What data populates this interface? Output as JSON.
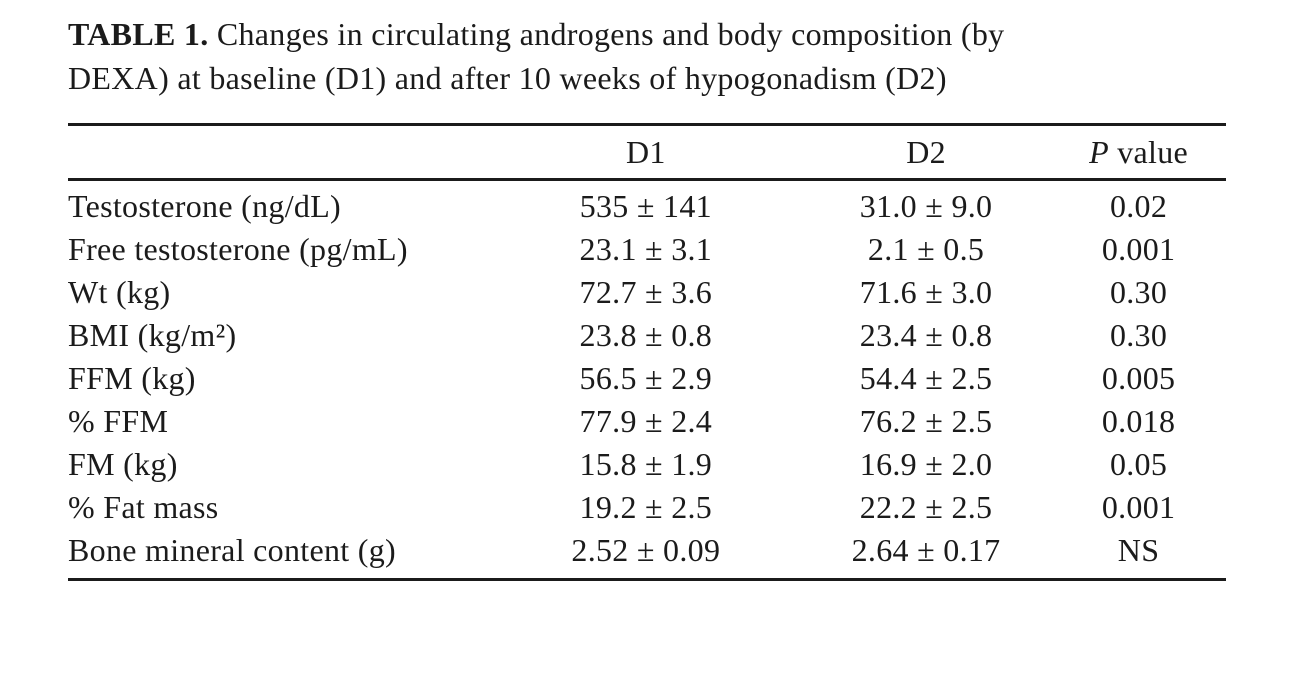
{
  "title": {
    "label": "TABLE 1.",
    "text": "Changes in circulating androgens and body composition (by DEXA) at baseline (D1) and after 10 weeks of hypogonadism (D2)"
  },
  "table": {
    "header": {
      "d1": "D1",
      "d2": "D2",
      "p_italic": "P",
      "p_rest": "value"
    },
    "rows": [
      {
        "label": "Testosterone (ng/dL)",
        "d1": "535 ± 141",
        "d2": "31.0 ± 9.0",
        "p": "0.02"
      },
      {
        "label": "Free testosterone (pg/mL)",
        "d1": "23.1 ± 3.1",
        "d2": "2.1 ± 0.5",
        "p": "0.001"
      },
      {
        "label": "Wt (kg)",
        "d1": "72.7 ± 3.6",
        "d2": "71.6 ± 3.0",
        "p": "0.30"
      },
      {
        "label": "BMI (kg/m²)",
        "d1": "23.8 ± 0.8",
        "d2": "23.4 ± 0.8",
        "p": "0.30"
      },
      {
        "label": "FFM (kg)",
        "d1": "56.5 ± 2.9",
        "d2": "54.4 ± 2.5",
        "p": "0.005"
      },
      {
        "label": "% FFM",
        "d1": "77.9 ± 2.4",
        "d2": "76.2 ± 2.5",
        "p": "0.018"
      },
      {
        "label": "FM (kg)",
        "d1": "15.8 ± 1.9",
        "d2": "16.9 ± 2.0",
        "p": "0.05"
      },
      {
        "label": "% Fat mass",
        "d1": "19.2 ± 2.5",
        "d2": "22.2 ± 2.5",
        "p": "0.001"
      },
      {
        "label": "Bone mineral content (g)",
        "d1": "2.52 ± 0.09",
        "d2": "2.64 ± 0.17",
        "p": "NS"
      }
    ]
  }
}
